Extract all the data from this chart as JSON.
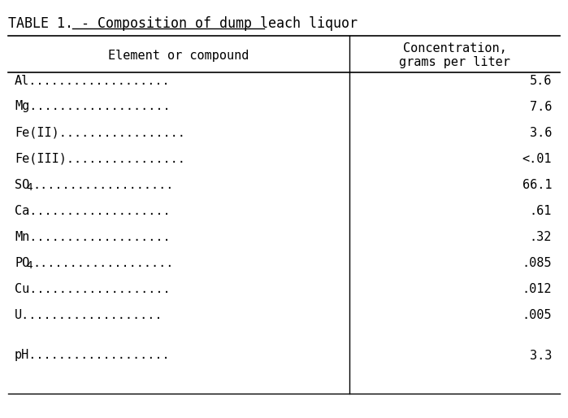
{
  "title": "TABLE 1. - Composition of dump leach liquor",
  "col1_header": "Element or compound",
  "col2_header_line1": "Concentration,",
  "col2_header_line2": "grams per liter",
  "rows": [
    {
      "element": "Al",
      "subscript": "",
      "suffix": "...................",
      "value": "5.6"
    },
    {
      "element": "Mg",
      "subscript": "",
      "suffix": "...................",
      "value": "7.6"
    },
    {
      "element": "Fe(II)",
      "subscript": "",
      "suffix": ".................",
      "value": "3.6"
    },
    {
      "element": "Fe(III)",
      "subscript": "",
      "suffix": "................",
      "value": "<.01"
    },
    {
      "element": "SO",
      "subscript": "4",
      "suffix": "...................",
      "value": "66.1"
    },
    {
      "element": "Ca",
      "subscript": "",
      "suffix": "...................",
      "value": ".61"
    },
    {
      "element": "Mn",
      "subscript": "",
      "suffix": "...................",
      "value": ".32"
    },
    {
      "element": "PO",
      "subscript": "4",
      "suffix": "...................",
      "value": ".085"
    },
    {
      "element": "Cu",
      "subscript": "",
      "suffix": "...................",
      "value": ".012"
    },
    {
      "element": "U",
      "subscript": "",
      "suffix": "...................",
      "value": ".005"
    },
    {
      "element": "pH",
      "subscript": "",
      "suffix": "...................",
      "value": "3.3"
    }
  ],
  "bg_color": "#ffffff",
  "text_color": "#000000",
  "font_size": 11,
  "title_font_size": 12
}
